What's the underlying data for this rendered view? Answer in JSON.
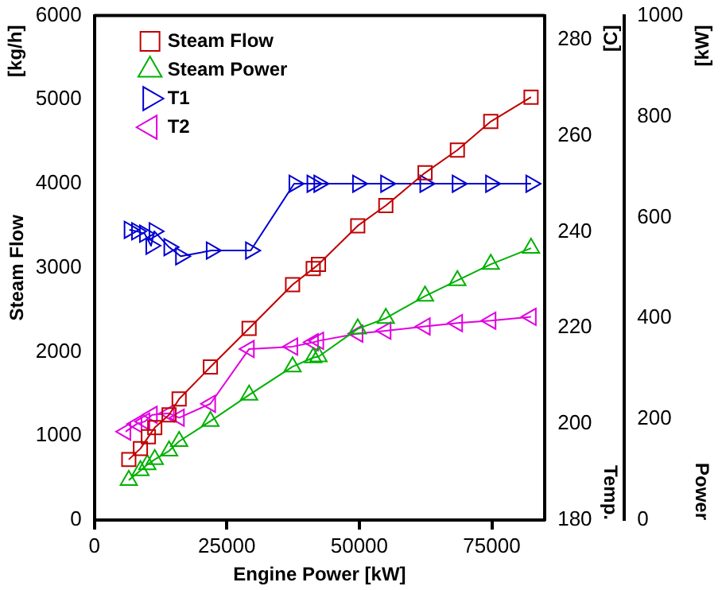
{
  "chart_data": {
    "type": "line",
    "xlabel": "Engine Power [kW]",
    "ylabel": "Steam Flow",
    "y2label": "Temp.",
    "y3label": "Power",
    "annotations": [
      "[kg/h]",
      "[C]",
      "[kW]"
    ],
    "xlim": [
      0,
      85000
    ],
    "xticks": [
      0,
      25000,
      50000,
      75000
    ],
    "ylim": [
      0,
      6000
    ],
    "yticks": [
      0,
      1000,
      2000,
      3000,
      4000,
      5000,
      6000
    ],
    "y2lim": [
      180,
      285
    ],
    "y2ticks": [
      180,
      200,
      220,
      240,
      260,
      280
    ],
    "y3lim": [
      0,
      1000
    ],
    "y3ticks": [
      0,
      200,
      400,
      600,
      800,
      1000
    ],
    "legend": "top left",
    "series": [
      {
        "name": "Steam Flow",
        "color": "#c00000",
        "marker": "square",
        "x": [
          6500,
          8700,
          10200,
          11400,
          14100,
          16000,
          21900,
          29200,
          37400,
          41300,
          42300,
          49700,
          55000,
          62400,
          68500,
          74800,
          82400
        ],
        "values": [
          720,
          850,
          990,
          1100,
          1250,
          1440,
          1820,
          2280,
          2800,
          2990,
          3040,
          3500,
          3740,
          4130,
          4400,
          4740,
          5030
        ]
      },
      {
        "name": "Steam Power",
        "color": "#00b000",
        "marker": "triangle",
        "axis": "y3",
        "x": [
          6500,
          8700,
          10000,
          11400,
          14100,
          16000,
          21900,
          29200,
          37400,
          41300,
          42300,
          49700,
          55000,
          62400,
          68500,
          74800,
          82400
        ],
        "values": [
          79,
          98,
          110,
          120,
          137,
          156,
          196,
          248,
          304,
          322,
          324,
          379,
          400,
          444,
          475,
          507,
          539
        ]
      },
      {
        "name": "T1",
        "color": "#0000d0",
        "marker": "triangle-right",
        "axis": "y2",
        "x": [
          6600,
          8000,
          9500,
          10700,
          11300,
          14100,
          16300,
          22100,
          29500,
          37700,
          41100,
          42400,
          49700,
          55000,
          62400,
          68500,
          74800,
          82400
        ],
        "values": [
          240.4,
          240.1,
          239.6,
          237.1,
          240.1,
          236.8,
          234.9,
          236.1,
          236.1,
          250,
          250,
          250,
          250,
          250,
          250,
          250,
          250,
          250
        ]
      },
      {
        "name": "T2",
        "color": "#e000e0",
        "marker": "triangle-left",
        "axis": "y2",
        "x": [
          5900,
          8000,
          9500,
          10900,
          14100,
          16000,
          21900,
          29200,
          37400,
          41300,
          42300,
          49700,
          55000,
          62400,
          68500,
          74800,
          82400
        ],
        "values": [
          198.4,
          200,
          200.5,
          201.9,
          202.2,
          201.3,
          204.2,
          215.6,
          216.1,
          217,
          217.3,
          218.8,
          219.4,
          220.3,
          221,
          221.5,
          222.3
        ]
      }
    ]
  }
}
